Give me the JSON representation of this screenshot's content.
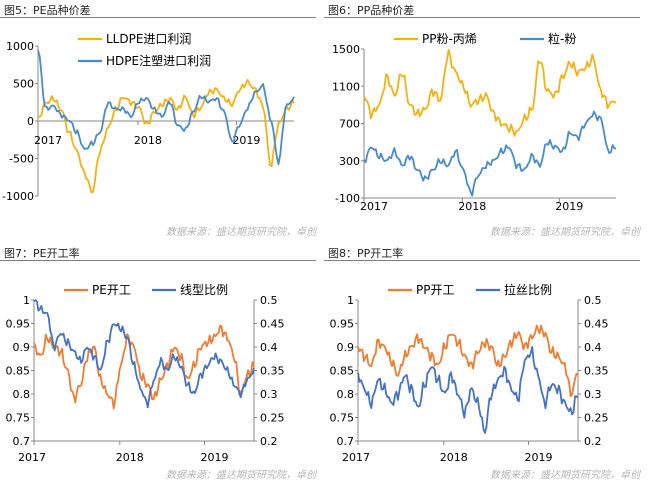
{
  "colors": {
    "orange": "#F2B211",
    "blue": "#4A8ACB",
    "orange2": "#ED7D31",
    "blue2": "#4472C4"
  },
  "panels": [
    {
      "title": "图5：PE品种价差",
      "source": "数据来源：盛达期货研究院，卓创"
    },
    {
      "title": "图6：PP品种价差",
      "source": "数据来源：盛达期货研究院，卓创"
    },
    {
      "title": "图7：PE开工率",
      "source": "数据来源：盛达期货研究院，卓创"
    },
    {
      "title": "图8：PP开工率",
      "source": "数据来源：盛达期货研究院，卓创"
    }
  ],
  "chart_data": [
    {
      "type": "line",
      "title": "图5：PE品种价差",
      "x_ticks": [
        "2017",
        "2018",
        "2019"
      ],
      "ylim": [
        -1000,
        1000
      ],
      "y_ticks": [
        1000,
        500,
        0,
        -500,
        -1000
      ],
      "legend_position": "top",
      "series": [
        {
          "name": "LLDPE进口利润",
          "color": "#F2B211",
          "values": [
            20,
            240,
            300,
            150,
            -150,
            -400,
            -700,
            -950,
            -400,
            -100,
            150,
            320,
            250,
            180,
            -50,
            120,
            220,
            300,
            150,
            320,
            80,
            180,
            380,
            420,
            300,
            220,
            420,
            520,
            420,
            200,
            -600,
            -50,
            150,
            250
          ]
        },
        {
          "name": "HDPE注塑进口利润",
          "color": "#4A8ACB",
          "values": [
            950,
            160,
            200,
            80,
            10,
            -150,
            -380,
            -300,
            -150,
            240,
            160,
            160,
            60,
            260,
            300,
            150,
            60,
            260,
            -60,
            -120,
            120,
            330,
            260,
            300,
            120,
            -280,
            -50,
            170,
            380,
            470,
            20,
            -550,
            200,
            300
          ]
        }
      ]
    },
    {
      "type": "line",
      "title": "图6：PP品种价差",
      "x_ticks": [
        "2017",
        "2018",
        "2019"
      ],
      "ylim": [
        -100,
        1500
      ],
      "y_ticks": [
        1500,
        1100,
        700,
        300,
        -100
      ],
      "legend_position": "top",
      "series": [
        {
          "name": "PP粉-丙烯",
          "color": "#F2B211",
          "values": [
            1000,
            800,
            900,
            1200,
            1000,
            1250,
            900,
            800,
            850,
            1050,
            950,
            1450,
            1250,
            1100,
            900,
            950,
            1000,
            800,
            700,
            650,
            600,
            750,
            850,
            1400,
            1050,
            1000,
            1200,
            1350,
            1250,
            1300,
            1400,
            1050,
            900,
            950
          ]
        },
        {
          "name": "粒-粉",
          "color": "#4A8ACB",
          "values": [
            300,
            450,
            350,
            300,
            400,
            250,
            350,
            200,
            100,
            200,
            300,
            250,
            400,
            200,
            -50,
            150,
            250,
            300,
            400,
            450,
            250,
            200,
            350,
            250,
            500,
            450,
            400,
            600,
            550,
            700,
            800,
            750,
            400,
            450
          ]
        }
      ]
    },
    {
      "type": "line",
      "title": "图7：PE开工率",
      "x_ticks": [
        "2017",
        "2018",
        "2019"
      ],
      "ylim": [
        0.7,
        1
      ],
      "y_ticks": [
        1,
        0.95,
        0.9,
        0.85,
        0.8,
        0.75,
        0.7
      ],
      "y2lim": [
        0.2,
        0.5
      ],
      "y2_ticks": [
        0.5,
        0.45,
        0.4,
        0.35,
        0.3,
        0.25,
        0.2
      ],
      "legend_position": "top",
      "series": [
        {
          "name": "PE开工",
          "color": "#ED7D31",
          "axis": "left",
          "values": [
            0.9,
            0.88,
            0.92,
            0.9,
            0.89,
            0.85,
            0.79,
            0.82,
            0.88,
            0.9,
            0.83,
            0.8,
            0.78,
            0.86,
            0.92,
            0.9,
            0.84,
            0.82,
            0.79,
            0.83,
            0.86,
            0.9,
            0.88,
            0.83,
            0.86,
            0.9,
            0.91,
            0.92,
            0.94,
            0.92,
            0.88,
            0.8,
            0.84,
            0.86
          ]
        },
        {
          "name": "线型比例",
          "color": "#4472C4",
          "axis": "right",
          "values": [
            0.5,
            0.48,
            0.47,
            0.4,
            0.43,
            0.41,
            0.39,
            0.37,
            0.4,
            0.38,
            0.35,
            0.41,
            0.45,
            0.44,
            0.42,
            0.36,
            0.31,
            0.28,
            0.33,
            0.37,
            0.35,
            0.38,
            0.36,
            0.32,
            0.3,
            0.34,
            0.36,
            0.38,
            0.37,
            0.35,
            0.32,
            0.3,
            0.33,
            0.35
          ]
        }
      ]
    },
    {
      "type": "line",
      "title": "图8：PP开工率",
      "x_ticks": [
        "2017",
        "2018",
        "2019"
      ],
      "ylim": [
        0.7,
        1
      ],
      "y_ticks": [
        1,
        0.95,
        0.9,
        0.85,
        0.8,
        0.75,
        0.7
      ],
      "y2lim": [
        0.2,
        0.5
      ],
      "y2_ticks": [
        0.5,
        0.45,
        0.4,
        0.35,
        0.3,
        0.25,
        0.2
      ],
      "legend_position": "top",
      "series": [
        {
          "name": "PP开工",
          "color": "#ED7D31",
          "axis": "left",
          "values": [
            0.9,
            0.88,
            0.86,
            0.91,
            0.9,
            0.87,
            0.84,
            0.88,
            0.9,
            0.92,
            0.9,
            0.88,
            0.86,
            0.9,
            0.93,
            0.91,
            0.88,
            0.86,
            0.89,
            0.91,
            0.9,
            0.86,
            0.88,
            0.91,
            0.93,
            0.9,
            0.92,
            0.94,
            0.93,
            0.89,
            0.88,
            0.86,
            0.8,
            0.85
          ]
        },
        {
          "name": "拉丝比例",
          "color": "#4472C4",
          "axis": "right",
          "values": [
            0.34,
            0.31,
            0.28,
            0.33,
            0.31,
            0.28,
            0.3,
            0.34,
            0.31,
            0.27,
            0.32,
            0.36,
            0.33,
            0.3,
            0.34,
            0.3,
            0.26,
            0.31,
            0.28,
            0.22,
            0.3,
            0.33,
            0.35,
            0.31,
            0.29,
            0.37,
            0.39,
            0.34,
            0.28,
            0.32,
            0.31,
            0.28,
            0.26,
            0.3
          ]
        }
      ]
    }
  ]
}
